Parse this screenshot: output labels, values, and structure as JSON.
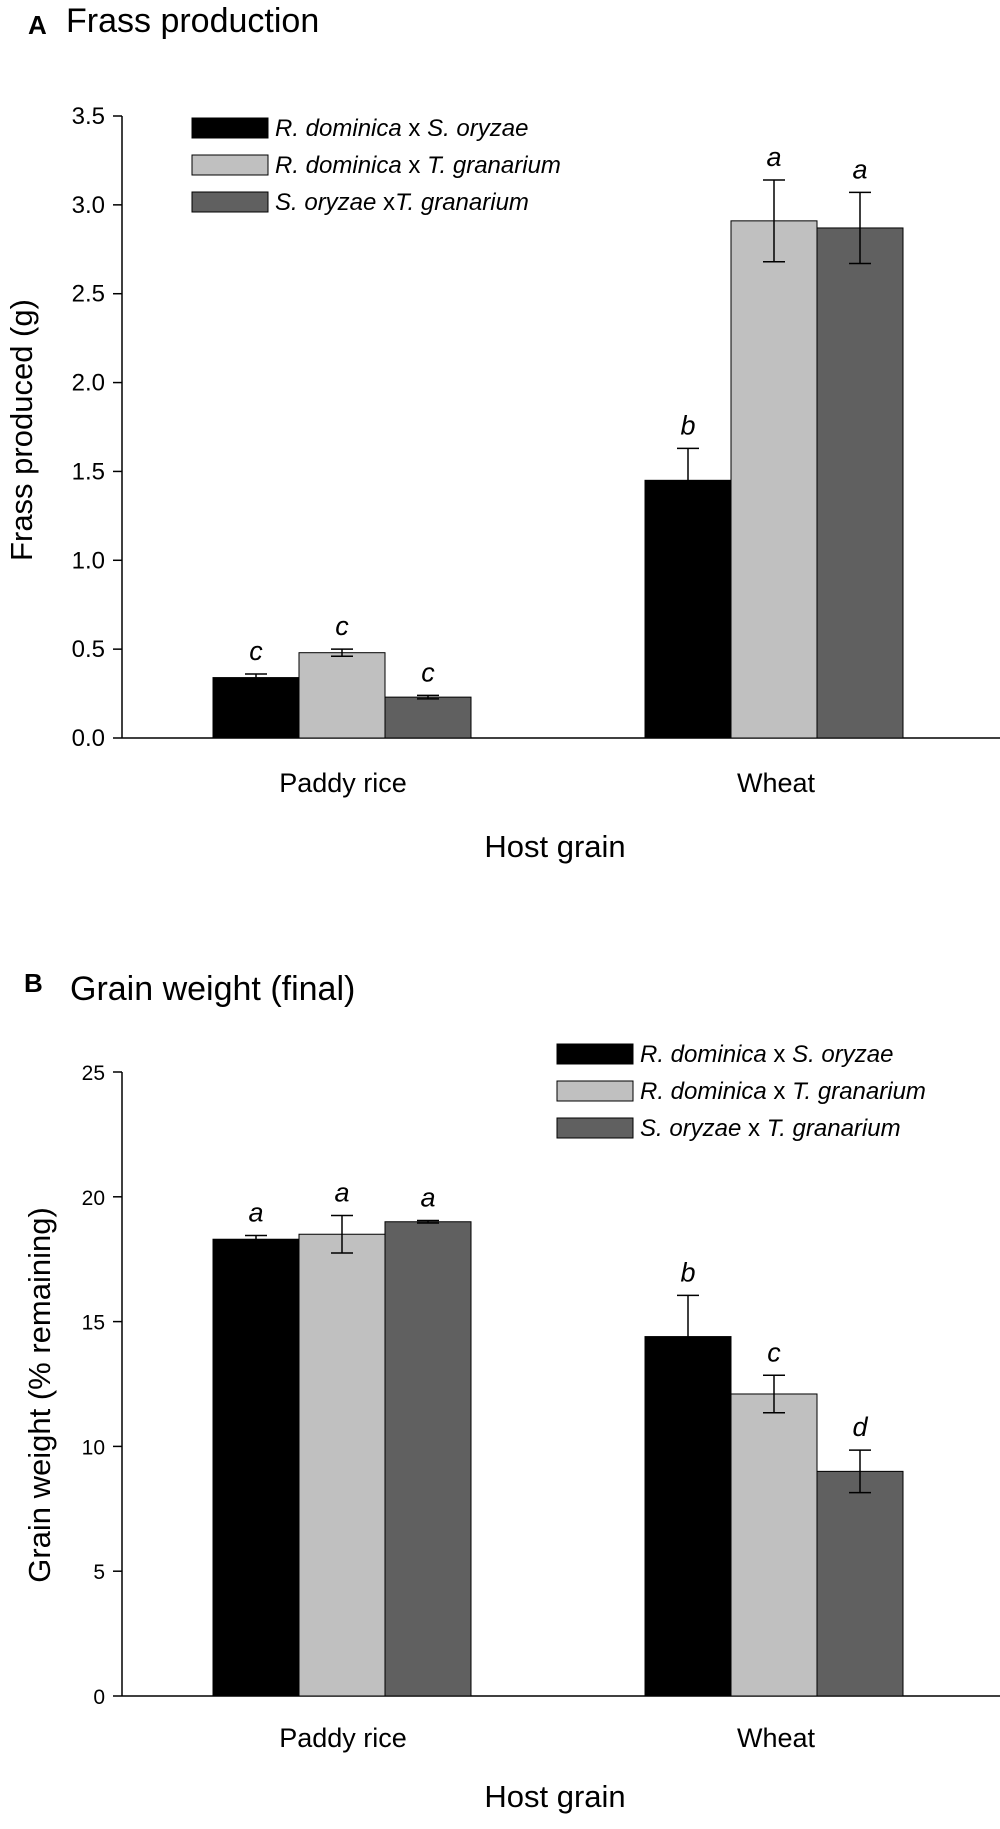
{
  "chart_data": [
    {
      "type": "bar",
      "panel": "A",
      "title": "Frass production",
      "xlabel": "Host grain",
      "ylabel": "Frass produced (g)",
      "ylim": [
        0,
        3.5
      ],
      "yticks": [
        "0.0",
        "0.5",
        "1.0",
        "1.5",
        "2.0",
        "2.5",
        "3.0",
        "3.5"
      ],
      "categories": [
        "Paddy rice",
        "Wheat"
      ],
      "series": [
        {
          "name": "R. dominica x S. oryzae",
          "name_parts": [
            [
              "R. dominica",
              true
            ],
            [
              " x ",
              false
            ],
            [
              "S. oryzae",
              true
            ]
          ],
          "color": "#000000",
          "values": [
            0.34,
            1.45
          ],
          "errors": [
            0.02,
            0.18
          ],
          "letters": [
            "c",
            "b"
          ]
        },
        {
          "name": "R. dominica x T. granarium",
          "name_parts": [
            [
              "R. dominica",
              true
            ],
            [
              " x ",
              false
            ],
            [
              "T. granarium",
              true
            ]
          ],
          "color": "#c0c0c0",
          "values": [
            0.48,
            2.91
          ],
          "errors": [
            0.02,
            0.23
          ],
          "letters": [
            "c",
            "a"
          ]
        },
        {
          "name": "S. oryzae xT. granarium",
          "name_parts": [
            [
              "S. oryzae",
              true
            ],
            [
              " x",
              false
            ],
            [
              "T. granarium",
              true
            ]
          ],
          "color": "#606060",
          "values": [
            0.23,
            2.87
          ],
          "errors": [
            0.01,
            0.2
          ],
          "letters": [
            "c",
            "a"
          ]
        }
      ]
    },
    {
      "type": "bar",
      "panel": "B",
      "title": "Grain weight (final)",
      "xlabel": "Host grain",
      "ylabel": "Grain weight (% remaining)",
      "ylim": [
        0,
        25
      ],
      "yticks": [
        "0",
        "5",
        "10",
        "15",
        "20",
        "25"
      ],
      "categories": [
        "Paddy rice",
        "Wheat"
      ],
      "series": [
        {
          "name": "R. dominica x S. oryzae",
          "name_parts": [
            [
              "R. dominica",
              true
            ],
            [
              " x ",
              false
            ],
            [
              "S. oryzae",
              true
            ]
          ],
          "color": "#000000",
          "values": [
            18.3,
            14.4
          ],
          "errors": [
            0.15,
            1.65
          ],
          "letters": [
            "a",
            "b"
          ]
        },
        {
          "name": "R. dominica x T. granarium",
          "name_parts": [
            [
              "R. dominica",
              true
            ],
            [
              " x ",
              false
            ],
            [
              "T. granarium",
              true
            ]
          ],
          "color": "#c0c0c0",
          "values": [
            18.5,
            12.1
          ],
          "errors": [
            0.75,
            0.75
          ],
          "letters": [
            "a",
            "c"
          ]
        },
        {
          "name": "S. oryzae x T. granarium",
          "name_parts": [
            [
              "S. oryzae",
              true
            ],
            [
              " x ",
              false
            ],
            [
              "T. granarium",
              true
            ]
          ],
          "color": "#606060",
          "values": [
            19.0,
            9.0
          ],
          "errors": [
            0.05,
            0.85
          ],
          "letters": [
            "a",
            "d"
          ]
        }
      ]
    }
  ]
}
